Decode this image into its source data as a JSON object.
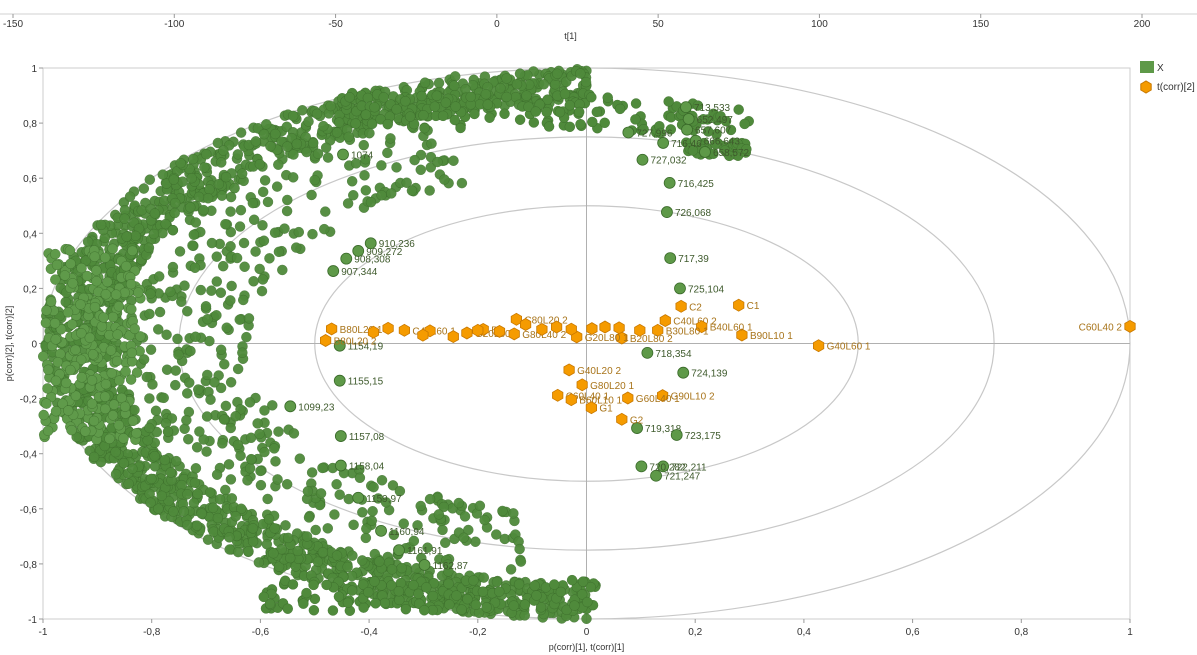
{
  "chart_data": {
    "type": "scatter",
    "top_axis": {
      "label": "t[1]",
      "range": [
        -150,
        200
      ],
      "ticks": [
        "-150",
        "-100",
        "-50",
        "0",
        "50",
        "100",
        "150",
        "200"
      ]
    },
    "x_axis": {
      "label": "p(corr)[1], t(corr)[1]",
      "range": [
        -1,
        1
      ],
      "ticks": [
        "-1",
        "-0,8",
        "-0,6",
        "-0,4",
        "-0,2",
        "0",
        "0,2",
        "0,4",
        "0,6",
        "0,8",
        "1"
      ]
    },
    "y_axis": {
      "label": "p(corr)[2], t(corr)[2]",
      "range": [
        -1,
        1
      ],
      "ticks": [
        "1",
        "0,8",
        "0,6",
        "0,4",
        "0,2",
        "0",
        "-0,2",
        "-0,4",
        "-0,6",
        "-0,8",
        "-1"
      ]
    },
    "ellipses": [
      1.0,
      0.75,
      0.5
    ],
    "legend": {
      "position": "top-right",
      "items": [
        {
          "label": "X",
          "color": "#5e9948",
          "shape": "square"
        },
        {
          "label": "t(corr)[2]",
          "color": "#f59b00",
          "shape": "hexagon"
        }
      ]
    },
    "series": [
      {
        "name": "X",
        "color": "#5e9948",
        "points": [
          {
            "x": 0.148,
            "y": 0.477,
            "label": "726,068"
          },
          {
            "x": 0.153,
            "y": 0.583,
            "label": "716,425"
          },
          {
            "x": 0.103,
            "y": 0.667,
            "label": "727,032"
          },
          {
            "x": 0.154,
            "y": 0.31,
            "label": "717,39"
          },
          {
            "x": 0.172,
            "y": 0.2,
            "label": "725,104"
          },
          {
            "x": 0.112,
            "y": -0.034,
            "label": "718,354"
          },
          {
            "x": 0.178,
            "y": -0.106,
            "label": "724,139"
          },
          {
            "x": 0.093,
            "y": -0.307,
            "label": "719,318"
          },
          {
            "x": 0.166,
            "y": -0.332,
            "label": "723,175"
          },
          {
            "x": 0.128,
            "y": -0.48,
            "label": "721,247"
          },
          {
            "x": 0.141,
            "y": -0.446,
            "label": "722,211"
          },
          {
            "x": 0.101,
            "y": -0.446,
            "label": "720,282"
          },
          {
            "x": 0.077,
            "y": 0.766,
            "label": "727,996"
          },
          {
            "x": 0.185,
            "y": 0.776,
            "label": "657,607"
          },
          {
            "x": 0.201,
            "y": 0.736,
            "label": "666,643"
          },
          {
            "x": 0.141,
            "y": 0.728,
            "label": "716,46"
          },
          {
            "x": 0.188,
            "y": 0.815,
            "label": "652,497"
          },
          {
            "x": 0.183,
            "y": 0.858,
            "label": "713,533"
          },
          {
            "x": 0.218,
            "y": 0.695,
            "label": "658,572"
          },
          {
            "x": -0.454,
            "y": -0.008,
            "label": "1154,19"
          },
          {
            "x": -0.454,
            "y": -0.135,
            "label": "1155,15"
          },
          {
            "x": -0.452,
            "y": -0.336,
            "label": "1157,08"
          },
          {
            "x": -0.452,
            "y": -0.443,
            "label": "1158,04"
          },
          {
            "x": -0.42,
            "y": -0.56,
            "label": "1159,97"
          },
          {
            "x": -0.378,
            "y": -0.68,
            "label": "1160,94"
          },
          {
            "x": -0.345,
            "y": -0.75,
            "label": "1161,91"
          },
          {
            "x": -0.298,
            "y": -0.804,
            "label": "1162,87"
          },
          {
            "x": -0.442,
            "y": 0.308,
            "label": "908,308"
          },
          {
            "x": -0.42,
            "y": 0.336,
            "label": "909,272"
          },
          {
            "x": -0.397,
            "y": 0.364,
            "label": "910,236"
          },
          {
            "x": -0.466,
            "y": 0.263,
            "label": "907,344"
          },
          {
            "x": -0.448,
            "y": 0.686,
            "label": "1074"
          },
          {
            "x": -0.545,
            "y": -0.228,
            "label": "1099,23"
          }
        ]
      },
      {
        "name": "t(corr)[2]",
        "color": "#f59b00",
        "points": [
          {
            "x": 1.0,
            "y": 0.062,
            "label": "C60L40 2"
          },
          {
            "x": 0.427,
            "y": -0.008,
            "label": "G40L60 1"
          },
          {
            "x": 0.286,
            "y": 0.031,
            "label": "B90L10 1"
          },
          {
            "x": 0.28,
            "y": 0.139,
            "label": "C1"
          },
          {
            "x": 0.174,
            "y": 0.135,
            "label": "C2"
          },
          {
            "x": 0.145,
            "y": 0.083,
            "label": "C40L60 2"
          },
          {
            "x": 0.212,
            "y": 0.061,
            "label": "B40L60 1"
          },
          {
            "x": 0.131,
            "y": 0.048,
            "label": "B30L80 1"
          },
          {
            "x": 0.065,
            "y": 0.02,
            "label": "B20L80 2"
          },
          {
            "x": -0.032,
            "y": -0.096,
            "label": "G40L20 2"
          },
          {
            "x": -0.008,
            "y": -0.15,
            "label": "G80L20 1"
          },
          {
            "x": 0.14,
            "y": -0.189,
            "label": "G90L10 2"
          },
          {
            "x": 0.076,
            "y": -0.198,
            "label": "G60L40 1"
          },
          {
            "x": -0.053,
            "y": -0.188,
            "label": "C60L40 1"
          },
          {
            "x": -0.028,
            "y": -0.204,
            "label": "B60L10 1"
          },
          {
            "x": 0.009,
            "y": -0.233,
            "label": "G1"
          },
          {
            "x": 0.065,
            "y": -0.275,
            "label": "G2"
          },
          {
            "x": -0.48,
            "y": 0.011,
            "label": "B80L20 2"
          },
          {
            "x": -0.469,
            "y": 0.053,
            "label": "B80L20 1"
          },
          {
            "x": -0.335,
            "y": 0.048,
            "label": "C40L60 1"
          },
          {
            "x": -0.129,
            "y": 0.088,
            "label": "C80L20 2"
          },
          {
            "x": -0.22,
            "y": 0.038,
            "label": "G20L80 1"
          },
          {
            "x": -0.018,
            "y": 0.024,
            "label": "G20L80 1"
          },
          {
            "x": -0.133,
            "y": 0.035,
            "label": "G80L40 2"
          },
          {
            "x": -0.19,
            "y": 0.051,
            "label": "B1"
          },
          {
            "x": -0.365,
            "y": 0.055,
            "label": ""
          },
          {
            "x": -0.288,
            "y": 0.046,
            "label": ""
          },
          {
            "x": -0.2,
            "y": 0.048,
            "label": ""
          },
          {
            "x": -0.082,
            "y": 0.051,
            "label": ""
          },
          {
            "x": -0.055,
            "y": 0.06,
            "label": ""
          },
          {
            "x": -0.028,
            "y": 0.052,
            "label": ""
          },
          {
            "x": 0.01,
            "y": 0.054,
            "label": ""
          },
          {
            "x": 0.034,
            "y": 0.06,
            "label": ""
          },
          {
            "x": 0.06,
            "y": 0.057,
            "label": ""
          },
          {
            "x": 0.098,
            "y": 0.048,
            "label": ""
          },
          {
            "x": -0.392,
            "y": 0.041,
            "label": ""
          },
          {
            "x": -0.301,
            "y": 0.03,
            "label": ""
          },
          {
            "x": -0.245,
            "y": 0.025,
            "label": ""
          },
          {
            "x": -0.16,
            "y": 0.044,
            "label": ""
          },
          {
            "x": -0.112,
            "y": 0.069,
            "label": ""
          }
        ]
      }
    ]
  }
}
